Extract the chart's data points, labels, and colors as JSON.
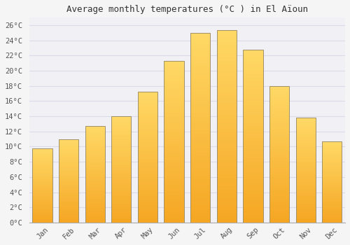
{
  "title": "Average monthly temperatures (°C ) in El Aïoun",
  "months": [
    "Jan",
    "Feb",
    "Mar",
    "Apr",
    "May",
    "Jun",
    "Jul",
    "Aug",
    "Sep",
    "Oct",
    "Nov",
    "Dec"
  ],
  "values": [
    9.8,
    11.0,
    12.7,
    14.0,
    17.2,
    21.3,
    25.0,
    25.4,
    22.8,
    18.0,
    13.8,
    10.7
  ],
  "bar_color_bottom": "#F5A623",
  "bar_color_top": "#FFD966",
  "bar_edge_color": "#A0906A",
  "ylim": [
    0,
    27
  ],
  "ytick_step": 2,
  "background_color": "#F5F5F5",
  "plot_bg_color": "#F0F0F5",
  "grid_color": "#DCDCE8",
  "font_family": "monospace",
  "title_fontsize": 9,
  "tick_fontsize": 7.5,
  "bar_width": 0.75
}
